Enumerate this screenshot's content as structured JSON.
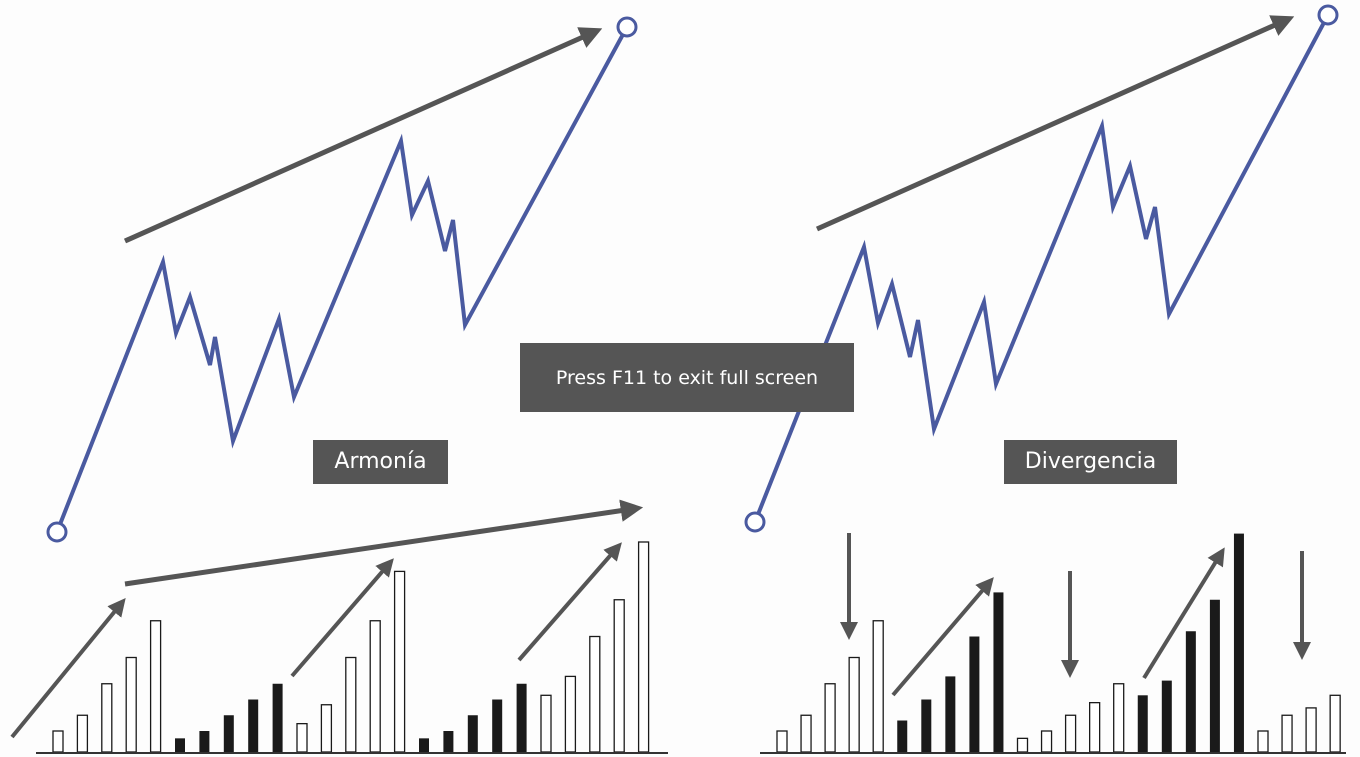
{
  "labels": {
    "left": "Armonía",
    "right": "Divergencia"
  },
  "toast": {
    "text": "Press F11 to exit full screen"
  },
  "colors": {
    "price_line": "#4a5aa0",
    "arrow": "#555555",
    "bar_filled": "#1a1a1a",
    "bar_outline": "#1a1a1a",
    "baseline": "#333333"
  },
  "panels": [
    {
      "name": "armonia",
      "bars": [
        {
          "value": 2,
          "filled": false
        },
        {
          "value": 3.5,
          "filled": false
        },
        {
          "value": 6.5,
          "filled": false
        },
        {
          "value": 9,
          "filled": false
        },
        {
          "value": 12.5,
          "filled": false
        },
        {
          "value": 1.3,
          "filled": true
        },
        {
          "value": 2,
          "filled": true
        },
        {
          "value": 3.5,
          "filled": true
        },
        {
          "value": 5,
          "filled": true
        },
        {
          "value": 6.5,
          "filled": true
        },
        {
          "value": 2.7,
          "filled": false
        },
        {
          "value": 4.5,
          "filled": false
        },
        {
          "value": 9,
          "filled": false
        },
        {
          "value": 12.5,
          "filled": false
        },
        {
          "value": 17.2,
          "filled": false
        },
        {
          "value": 1.3,
          "filled": true
        },
        {
          "value": 2,
          "filled": true
        },
        {
          "value": 3.5,
          "filled": true
        },
        {
          "value": 5,
          "filled": true
        },
        {
          "value": 6.5,
          "filled": true
        },
        {
          "value": 5.4,
          "filled": false
        },
        {
          "value": 7.2,
          "filled": false
        },
        {
          "value": 11,
          "filled": false
        },
        {
          "value": 14.5,
          "filled": false
        },
        {
          "value": 20,
          "filled": false
        }
      ]
    },
    {
      "name": "divergencia",
      "bars": [
        {
          "value": 2,
          "filled": false
        },
        {
          "value": 3.5,
          "filled": false
        },
        {
          "value": 6.5,
          "filled": false
        },
        {
          "value": 9,
          "filled": false
        },
        {
          "value": 12.5,
          "filled": false
        },
        {
          "value": 3,
          "filled": true
        },
        {
          "value": 5,
          "filled": true
        },
        {
          "value": 7.2,
          "filled": true
        },
        {
          "value": 11,
          "filled": true
        },
        {
          "value": 15.2,
          "filled": true
        },
        {
          "value": 1.3,
          "filled": false
        },
        {
          "value": 2,
          "filled": false
        },
        {
          "value": 3.5,
          "filled": false
        },
        {
          "value": 4.7,
          "filled": false
        },
        {
          "value": 6.5,
          "filled": false
        },
        {
          "value": 5.4,
          "filled": true
        },
        {
          "value": 6.8,
          "filled": true
        },
        {
          "value": 11.5,
          "filled": true
        },
        {
          "value": 14.5,
          "filled": true
        },
        {
          "value": 20.8,
          "filled": true
        },
        {
          "value": 2,
          "filled": false
        },
        {
          "value": 3.5,
          "filled": false
        },
        {
          "value": 4.2,
          "filled": false
        },
        {
          "value": 5.4,
          "filled": false
        }
      ]
    }
  ]
}
